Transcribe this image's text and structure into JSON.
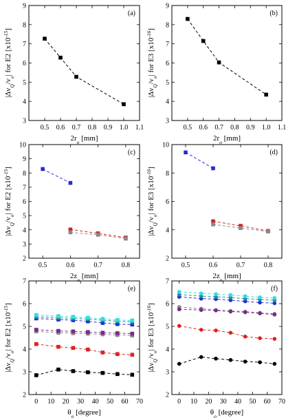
{
  "chart_data": [
    {
      "panel_label": "(a)",
      "type": "scatter",
      "xlabel": "2r_o [mm]",
      "ylabel": "|Δν_Q/ν_o| for E2 [x10^-15]",
      "xlim": [
        0.4,
        1.1
      ],
      "ylim": [
        3,
        9
      ],
      "xticks": [
        "0.5",
        "0.6",
        "0.7",
        "0.8",
        "0.9",
        "1.0",
        "1.1"
      ],
      "yticks": [
        "3",
        "4",
        "5",
        "6",
        "7",
        "8",
        "9"
      ],
      "series": [
        {
          "color": "#000000",
          "marker": "square",
          "x": [
            0.5,
            0.6,
            0.7,
            1.0
          ],
          "y": [
            7.27,
            6.28,
            5.28,
            3.85
          ]
        }
      ]
    },
    {
      "panel_label": "(b)",
      "type": "scatter",
      "xlabel": "2r_o [mm]",
      "ylabel": "|Δν_Q/ν_o| for E3 [x10^-16]",
      "xlim": [
        0.4,
        1.1
      ],
      "ylim": [
        3,
        9
      ],
      "xticks": [
        "0.5",
        "0.6",
        "0.7",
        "0.8",
        "0.9",
        "1.0",
        "1.1"
      ],
      "yticks": [
        "3",
        "4",
        "5",
        "6",
        "7",
        "8",
        "9"
      ],
      "series": [
        {
          "color": "#000000",
          "marker": "square",
          "x": [
            0.5,
            0.6,
            0.7,
            1.0
          ],
          "y": [
            8.3,
            7.15,
            6.03,
            4.35
          ]
        }
      ]
    },
    {
      "panel_label": "(c)",
      "type": "scatter",
      "xlabel": "2z_o [mm]",
      "ylabel": "|Δν_Q/ν_o| for E2 [x10^-15]",
      "xlim": [
        0.45,
        0.85
      ],
      "ylim": [
        2,
        10
      ],
      "xticks": [
        "0.5",
        "0.6",
        "0.7",
        "0.8"
      ],
      "yticks": [
        "2",
        "3",
        "4",
        "5",
        "6",
        "7",
        "8",
        "9",
        "10"
      ],
      "series": [
        {
          "color": "#2a2ad8",
          "marker": "square",
          "x": [
            0.5,
            0.6
          ],
          "y": [
            8.28,
            7.3
          ]
        },
        {
          "color": "#d42020",
          "marker": "square",
          "x": [
            0.6,
            0.7,
            0.8
          ],
          "y": [
            4.02,
            3.75,
            3.45
          ]
        },
        {
          "color": "#888888",
          "marker": "square",
          "x": [
            0.6,
            0.7,
            0.8
          ],
          "y": [
            3.82,
            3.65,
            3.38
          ]
        }
      ]
    },
    {
      "panel_label": "(d)",
      "type": "scatter",
      "xlabel": "2z_o [mm]",
      "ylabel": "|Δν_Q/ν_o| for E3 [x10^-16]",
      "xlim": [
        0.45,
        0.85
      ],
      "ylim": [
        2,
        10
      ],
      "xticks": [
        "0.5",
        "0.6",
        "0.7",
        "0.8"
      ],
      "yticks": [
        "2",
        "4",
        "6",
        "8",
        "10"
      ],
      "series": [
        {
          "color": "#2a2ad8",
          "marker": "square",
          "x": [
            0.5,
            0.6
          ],
          "y": [
            9.45,
            8.33
          ]
        },
        {
          "color": "#d42020",
          "marker": "square",
          "x": [
            0.6,
            0.7,
            0.8
          ],
          "y": [
            4.6,
            4.28,
            3.92
          ]
        },
        {
          "color": "#888888",
          "marker": "square",
          "x": [
            0.6,
            0.7,
            0.8
          ],
          "y": [
            4.38,
            4.12,
            3.88
          ]
        }
      ]
    },
    {
      "panel_label": "(e)",
      "type": "scatter",
      "xlabel": "θ_o [degree]",
      "ylabel": "|Δν_Q/ν_o| for E2 [x10^-15]",
      "xlim": [
        -5,
        70
      ],
      "ylim": [
        2,
        7
      ],
      "xticks": [
        "0",
        "10",
        "20",
        "30",
        "40",
        "50",
        "60",
        "70"
      ],
      "yticks": [
        "2",
        "3",
        "4",
        "5",
        "6",
        "7"
      ],
      "series": [
        {
          "color": "#000000",
          "marker": "square",
          "x": [
            0,
            15,
            25,
            35,
            45,
            55,
            65
          ],
          "y": [
            2.85,
            3.1,
            3.03,
            2.98,
            2.95,
            2.9,
            2.87
          ]
        },
        {
          "color": "#e02020",
          "marker": "square",
          "x": [
            0,
            15,
            25,
            35,
            45,
            55,
            65
          ],
          "y": [
            4.22,
            4.1,
            4.05,
            3.98,
            3.85,
            3.78,
            3.75
          ]
        },
        {
          "color": "#888888",
          "marker": "square",
          "x": [
            0,
            15,
            25,
            35,
            45,
            55,
            65
          ],
          "y": [
            4.78,
            4.72,
            4.7,
            4.68,
            4.65,
            4.62,
            4.6
          ]
        },
        {
          "color": "#7a2a8a",
          "marker": "square",
          "x": [
            0,
            15,
            25,
            35,
            45,
            55,
            65
          ],
          "y": [
            4.85,
            4.8,
            4.78,
            4.75,
            4.72,
            4.7,
            4.68
          ]
        },
        {
          "color": "#1f2fd8",
          "marker": "square",
          "x": [
            0,
            15,
            25,
            35,
            45,
            55,
            65
          ],
          "y": [
            5.35,
            5.3,
            5.27,
            5.22,
            5.15,
            5.1,
            5.08
          ]
        },
        {
          "color": "#2a8a8a",
          "marker": "square",
          "x": [
            0,
            15,
            25,
            35,
            45,
            55,
            65
          ],
          "y": [
            5.42,
            5.38,
            5.35,
            5.32,
            5.27,
            5.22,
            5.2
          ]
        },
        {
          "color": "#30e0e0",
          "marker": "square",
          "x": [
            0,
            15,
            25,
            35,
            45,
            55,
            65
          ],
          "y": [
            5.5,
            5.45,
            5.42,
            5.38,
            5.33,
            5.28,
            5.26
          ]
        }
      ]
    },
    {
      "panel_label": "(f)",
      "type": "scatter",
      "xlabel": "θ_o [degree]",
      "ylabel": "|Δν_Q/ν_o| for E3 [x10^-16]",
      "xlim": [
        -5,
        70
      ],
      "ylim": [
        2,
        7
      ],
      "xticks": [
        "0",
        "10",
        "20",
        "30",
        "40",
        "50",
        "60",
        "70"
      ],
      "yticks": [
        "2",
        "3",
        "4",
        "5",
        "6",
        "7"
      ],
      "series": [
        {
          "color": "#000000",
          "marker": "circle",
          "x": [
            0,
            15,
            25,
            35,
            45,
            55,
            65
          ],
          "y": [
            3.35,
            3.65,
            3.58,
            3.52,
            3.45,
            3.42,
            3.35
          ]
        },
        {
          "color": "#e02020",
          "marker": "circle",
          "x": [
            0,
            15,
            25,
            35,
            45,
            55,
            65
          ],
          "y": [
            5.02,
            4.85,
            4.82,
            4.72,
            4.55,
            4.48,
            4.45
          ]
        },
        {
          "color": "#888888",
          "marker": "circle",
          "x": [
            0,
            15,
            25,
            35,
            45,
            55,
            65
          ],
          "y": [
            5.85,
            5.78,
            5.72,
            5.68,
            5.65,
            5.6,
            5.55
          ]
        },
        {
          "color": "#7a2a8a",
          "marker": "circle",
          "x": [
            0,
            15,
            25,
            35,
            45,
            55,
            65
          ],
          "y": [
            5.75,
            5.72,
            5.7,
            5.65,
            5.62,
            5.57,
            5.52
          ]
        },
        {
          "color": "#1f2fd8",
          "marker": "circle",
          "x": [
            0,
            15,
            25,
            35,
            45,
            55,
            65
          ],
          "y": [
            6.3,
            6.22,
            6.2,
            6.15,
            6.1,
            6.05,
            6.02
          ]
        },
        {
          "color": "#2a8a8a",
          "marker": "circle",
          "x": [
            0,
            15,
            25,
            35,
            45,
            55,
            65
          ],
          "y": [
            6.4,
            6.33,
            6.3,
            6.27,
            6.22,
            6.18,
            6.15
          ]
        },
        {
          "color": "#30e0e0",
          "marker": "circle",
          "x": [
            0,
            15,
            25,
            35,
            45,
            55,
            65
          ],
          "y": [
            6.52,
            6.45,
            6.42,
            6.38,
            6.33,
            6.28,
            6.25
          ]
        }
      ]
    }
  ]
}
